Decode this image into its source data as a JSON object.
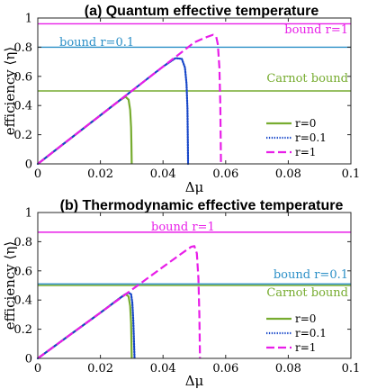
{
  "chart_data": [
    {
      "type": "line",
      "title": "(a) Quantum effective temperature",
      "xlabel": "Δμ",
      "ylabel": "efficiency ⟨η⟩",
      "xlim": [
        0,
        0.1
      ],
      "ylim": [
        0,
        1
      ],
      "xticks": [
        0,
        0.02,
        0.04,
        0.06,
        0.08,
        0.1
      ],
      "xtick_labels": [
        "0",
        "0.02",
        "0.04",
        "0.06",
        "0.08",
        "0.1"
      ],
      "yticks": [
        0,
        0.2,
        0.4,
        0.6,
        0.8,
        1
      ],
      "ytick_labels": [
        "0",
        "0.2",
        "0.4",
        "0.6",
        "0.8",
        "1"
      ],
      "hlines": [
        {
          "y": 0.96,
          "label": "bound r=1",
          "color": "#e81ee8"
        },
        {
          "y": 0.8,
          "label": "bound r=0.1",
          "color": "#2b8fc7"
        },
        {
          "y": 0.5,
          "label": "Carnot bound",
          "color": "#77ac30"
        }
      ],
      "series": [
        {
          "name": "r=0",
          "color": "#77ac30",
          "dash": "solid",
          "x": [
            0,
            0.01,
            0.02,
            0.026,
            0.028,
            0.029,
            0.0295,
            0.0298,
            0.0299,
            0.03
          ],
          "y": [
            0,
            0.167,
            0.333,
            0.433,
            0.46,
            0.44,
            0.37,
            0.25,
            0.14,
            0
          ]
        },
        {
          "name": "r=0.1",
          "color": "#1545c8",
          "dash": "dotted",
          "x": [
            0,
            0.01,
            0.02,
            0.03,
            0.04,
            0.044,
            0.046,
            0.047,
            0.0475,
            0.0478,
            0.0479,
            0.048
          ],
          "y": [
            0,
            0.167,
            0.333,
            0.5,
            0.667,
            0.725,
            0.72,
            0.66,
            0.55,
            0.38,
            0.2,
            0
          ]
        },
        {
          "name": "r=1",
          "color": "#e81ee8",
          "dash": "dashed",
          "x": [
            0,
            0.01,
            0.02,
            0.03,
            0.04,
            0.05,
            0.054,
            0.056,
            0.057,
            0.0575,
            0.058,
            0.0583,
            0.0585
          ],
          "y": [
            0,
            0.167,
            0.333,
            0.5,
            0.667,
            0.833,
            0.87,
            0.885,
            0.87,
            0.82,
            0.66,
            0.4,
            0
          ]
        }
      ],
      "legend": {
        "position": "center-right",
        "entries": [
          "r=0",
          "r=0.1",
          "r=1"
        ]
      }
    },
    {
      "type": "line",
      "title": "(b) Thermodynamic effective temperature",
      "xlabel": "Δμ",
      "ylabel": "efficiency ⟨η⟩",
      "xlim": [
        0,
        0.1
      ],
      "ylim": [
        0,
        1
      ],
      "xticks": [
        0,
        0.02,
        0.04,
        0.06,
        0.08,
        0.1
      ],
      "xtick_labels": [
        "0",
        "0.02",
        "0.04",
        "0.06",
        "0.08",
        "0.1"
      ],
      "yticks": [
        0,
        0.2,
        0.4,
        0.6,
        0.8,
        1
      ],
      "ytick_labels": [
        "0",
        "0.2",
        "0.4",
        "0.6",
        "0.8",
        "1"
      ],
      "hlines": [
        {
          "y": 0.865,
          "label": "bound r=1",
          "color": "#e81ee8"
        },
        {
          "y": 0.51,
          "label": "bound r=0.1",
          "color": "#2b8fc7"
        },
        {
          "y": 0.5,
          "label": "Carnot bound",
          "color": "#77ac30"
        }
      ],
      "series": [
        {
          "name": "r=0",
          "color": "#77ac30",
          "dash": "solid",
          "x": [
            0,
            0.01,
            0.02,
            0.026,
            0.028,
            0.029,
            0.0295,
            0.0298,
            0.0299,
            0.03
          ],
          "y": [
            0,
            0.157,
            0.313,
            0.41,
            0.44,
            0.425,
            0.36,
            0.24,
            0.13,
            0
          ]
        },
        {
          "name": "r=0.1",
          "color": "#1545c8",
          "dash": "dotted",
          "x": [
            0,
            0.01,
            0.02,
            0.026,
            0.028,
            0.029,
            0.0298,
            0.0302,
            0.0305,
            0.0307,
            0.0309
          ],
          "y": [
            0,
            0.157,
            0.313,
            0.41,
            0.44,
            0.45,
            0.44,
            0.38,
            0.26,
            0.13,
            0
          ]
        },
        {
          "name": "r=1",
          "color": "#e81ee8",
          "dash": "dashed",
          "x": [
            0,
            0.01,
            0.02,
            0.03,
            0.04,
            0.046,
            0.048,
            0.049,
            0.05,
            0.0508,
            0.0513,
            0.0516,
            0.0518
          ],
          "y": [
            0,
            0.157,
            0.313,
            0.47,
            0.627,
            0.72,
            0.75,
            0.765,
            0.77,
            0.72,
            0.55,
            0.3,
            0
          ]
        }
      ],
      "legend": {
        "position": "center-right",
        "entries": [
          "r=0",
          "r=0.1",
          "r=1"
        ]
      }
    }
  ]
}
